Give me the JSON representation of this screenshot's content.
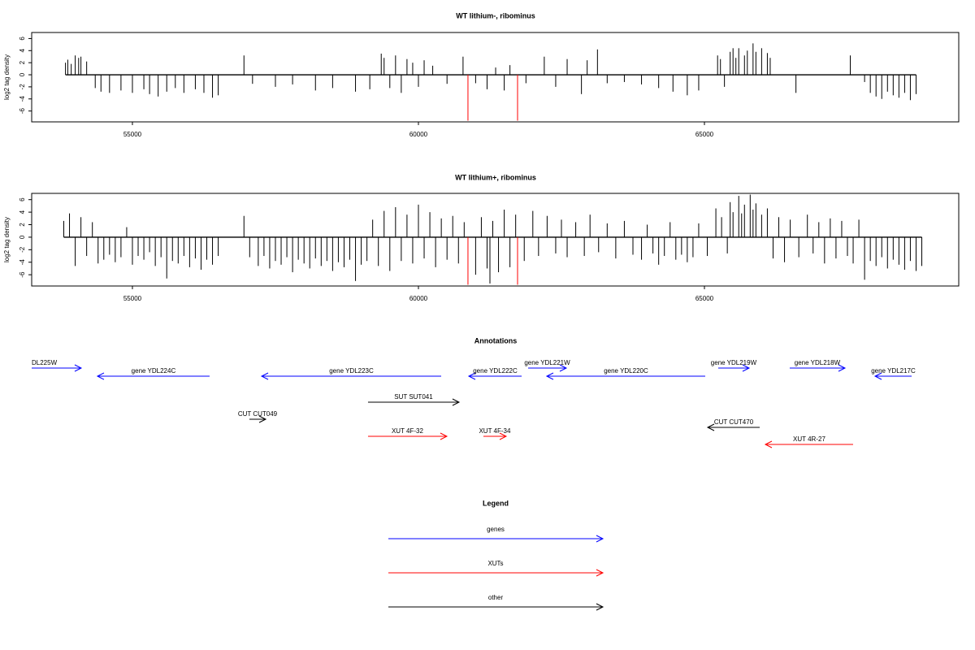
{
  "chart_data": [
    {
      "type": "bar",
      "title": "WT lithium-, ribominus",
      "y_label": "log2 tag density",
      "xlim": [
        53239,
        69446
      ],
      "ylim": [
        -7.8,
        7
      ],
      "xticks": [
        55000,
        60000,
        65000
      ],
      "yticks": [
        -6,
        -4,
        -2,
        0,
        2,
        4,
        6
      ],
      "series": [
        {
          "color": "#000000",
          "x": [
            53830,
            53870,
            53930,
            54000,
            54060,
            54100,
            54200,
            54350,
            54450,
            54600,
            54800,
            55000,
            55200,
            55300,
            55450,
            55600,
            55750,
            55900,
            56100,
            56250,
            56400,
            56500,
            56950,
            57100,
            57500,
            57800,
            58200,
            58500,
            58900,
            59150,
            59350,
            59400,
            59500,
            59600,
            59700,
            59800,
            59900,
            60000,
            60100,
            60250,
            60500,
            60780,
            61000,
            61200,
            61350,
            61500,
            61600,
            61880,
            62200,
            62400,
            62600,
            62850,
            62950,
            63130,
            63300,
            63600,
            63900,
            64200,
            64450,
            64700,
            64900,
            65230,
            65280,
            65350,
            65450,
            65500,
            65550,
            65600,
            65700,
            65750,
            65850,
            65900,
            66000,
            66100,
            66150,
            66600,
            67550,
            67800,
            67900,
            68000,
            68100,
            68200,
            68300,
            68400,
            68500,
            68600,
            68700
          ],
          "values": [
            2,
            2.5,
            1.8,
            3.2,
            2.8,
            3,
            2.2,
            -2.2,
            -2.8,
            -3,
            -2.6,
            -3,
            -2.4,
            -3.2,
            -3.6,
            -2.8,
            -2.2,
            -3,
            -2.4,
            -3,
            -3.8,
            -3.4,
            3.2,
            -1.5,
            -2,
            -1.6,
            -2.6,
            -2.2,
            -2.8,
            -2.4,
            3.5,
            2.8,
            -2.2,
            3.2,
            -3,
            2.6,
            2,
            -2,
            2.4,
            1.5,
            -1.5,
            3,
            -1.4,
            -2.4,
            1.2,
            -2.6,
            1.6,
            -1.4,
            3,
            -2,
            2.6,
            -3.2,
            2.4,
            4.2,
            -1.4,
            -1.2,
            -1.6,
            -2.2,
            -2.8,
            -3.4,
            -2.6,
            3.2,
            2.6,
            -2,
            3.8,
            4.4,
            2.8,
            4.4,
            3.2,
            4,
            5.2,
            3.8,
            4.4,
            3.6,
            2.8,
            -3,
            3.2,
            -1.2,
            -3,
            -3.6,
            -4,
            -2.8,
            -3.4,
            -3.8,
            -3,
            -4.2,
            -3.2
          ]
        },
        {
          "color": "#ff0000",
          "x": [
            60866,
            61733
          ],
          "values": [
            -7.6,
            -7.6
          ]
        }
      ]
    },
    {
      "type": "bar",
      "title": "WT lithium+, ribominus",
      "y_label": "log2 tag density",
      "xlim": [
        53239,
        69446
      ],
      "ylim": [
        -7.8,
        7
      ],
      "xticks": [
        55000,
        60000,
        65000
      ],
      "yticks": [
        -6,
        -4,
        -2,
        0,
        2,
        4,
        6
      ],
      "series": [
        {
          "color": "#000000",
          "x": [
            53800,
            53900,
            54000,
            54100,
            54200,
            54300,
            54400,
            54500,
            54600,
            54700,
            54800,
            54900,
            55000,
            55100,
            55200,
            55300,
            55400,
            55500,
            55600,
            55700,
            55800,
            55900,
            56000,
            56100,
            56200,
            56300,
            56400,
            56500,
            56950,
            57050,
            57200,
            57300,
            57400,
            57500,
            57600,
            57700,
            57800,
            57900,
            58000,
            58100,
            58200,
            58300,
            58400,
            58500,
            58600,
            58700,
            58800,
            58900,
            59000,
            59100,
            59200,
            59300,
            59400,
            59500,
            59600,
            59700,
            59800,
            59900,
            60000,
            60100,
            60200,
            60300,
            60400,
            60500,
            60600,
            60700,
            60800,
            61000,
            61100,
            61200,
            61250,
            61300,
            61400,
            61500,
            61600,
            61700,
            61850,
            62000,
            62100,
            62250,
            62400,
            62500,
            62600,
            62750,
            62900,
            63000,
            63150,
            63300,
            63450,
            63600,
            63750,
            63900,
            64000,
            64100,
            64200,
            64300,
            64400,
            64500,
            64600,
            64700,
            64800,
            64900,
            65050,
            65200,
            65300,
            65400,
            65450,
            65500,
            65600,
            65650,
            65700,
            65800,
            65850,
            65900,
            66000,
            66100,
            66200,
            66300,
            66400,
            66500,
            66650,
            66800,
            66900,
            67000,
            67100,
            67200,
            67300,
            67400,
            67500,
            67600,
            67700,
            67800,
            67900,
            68000,
            68100,
            68200,
            68300,
            68400,
            68500,
            68600,
            68700,
            68800
          ],
          "values": [
            2.6,
            3.8,
            -4.6,
            3.2,
            -3,
            2.4,
            -4.2,
            -3.6,
            -2.8,
            -4,
            -3.2,
            1.6,
            -4.4,
            -3,
            -3.6,
            -2.4,
            -4.6,
            -3.2,
            -6.6,
            -3.8,
            -4.2,
            -3,
            -4.8,
            -3.4,
            -5.2,
            -3.6,
            -4.4,
            -3,
            3.4,
            -3.2,
            -4.6,
            -3,
            -5,
            -3.8,
            -4.4,
            -3.2,
            -5.6,
            -3.6,
            -4.2,
            -5,
            -3.4,
            -4.6,
            -3.8,
            -5.4,
            -4,
            -4.8,
            -3.6,
            -7,
            -4.4,
            -3.8,
            2.8,
            -4.6,
            4.2,
            -5.4,
            4.8,
            -3.8,
            3.6,
            -4.2,
            5.2,
            -3.4,
            4,
            -4.8,
            3,
            -3.6,
            3.4,
            -4.2,
            2.4,
            -6,
            3.2,
            -5,
            -7.4,
            2.6,
            -5.6,
            4.4,
            -4.8,
            3.6,
            -3.8,
            4.2,
            -3,
            3.4,
            -2.6,
            2.8,
            -3.2,
            2.4,
            -3,
            3.6,
            -2.4,
            2.2,
            -3.4,
            2.6,
            -2.8,
            -3.6,
            2,
            -2.6,
            -4.4,
            -3,
            2.4,
            -3.6,
            -2.8,
            -4,
            -3.2,
            2.2,
            -3,
            4.6,
            3.2,
            -2.6,
            5.6,
            4,
            6.6,
            3.8,
            5.2,
            6.8,
            4.4,
            5.4,
            3.6,
            4.6,
            -3.4,
            3.2,
            -4,
            2.8,
            -3.2,
            3.6,
            -2.6,
            2.4,
            -4.2,
            3,
            -3.4,
            2.6,
            -3,
            -4.2,
            2.8,
            -6.8,
            -3.8,
            -4.6,
            -3.2,
            -5,
            -3.6,
            -4.4,
            -5.2,
            -3.8,
            -5.4,
            -4.6
          ]
        },
        {
          "color": "#ff0000",
          "x": [
            60866,
            61733
          ],
          "values": [
            -7.6,
            -7.6
          ]
        }
      ]
    }
  ],
  "annotations": {
    "title": "Annotations",
    "features": [
      {
        "label": "DL225W",
        "start": 53239,
        "end": 54105,
        "color": "#0000ff"
      },
      {
        "label": "gene YDL224C",
        "start": 56349,
        "end": 54389,
        "color": "#0000ff"
      },
      {
        "label": "gene YDL223C",
        "start": 60398,
        "end": 57259,
        "color": "#0000ff"
      },
      {
        "label": "gene YDL222C",
        "start": 61804,
        "end": 60881,
        "color": "#0000ff"
      },
      {
        "label": "gene YDL221W",
        "start": 61918,
        "end": 62585,
        "color": "#0000ff"
      },
      {
        "label": "gene YDL220C",
        "start": 65014,
        "end": 62244,
        "color": "#0000ff"
      },
      {
        "label": "gene YDL219W",
        "start": 65241,
        "end": 65781,
        "color": "#0000ff"
      },
      {
        "label": "gene YDL218W",
        "start": 66491,
        "end": 67457,
        "color": "#0000ff"
      },
      {
        "label": "gene YDL217C",
        "start": 68622,
        "end": 67983,
        "color": "#0000ff"
      },
      {
        "label": "SUT SUT041",
        "start": 59119,
        "end": 60710,
        "color": "#000000"
      },
      {
        "label": "CUT CUT049",
        "start": 57045,
        "end": 57330,
        "color": "#000000"
      },
      {
        "label": "CUT CUT470",
        "start": 65966,
        "end": 65057,
        "color": "#000000"
      },
      {
        "label": "XUT 4F-32",
        "start": 59119,
        "end": 60497,
        "color": "#ff0000"
      },
      {
        "label": "XUT 4F-34",
        "start": 61136,
        "end": 61534,
        "color": "#ff0000"
      },
      {
        "label": "XUT 4R-27",
        "start": 67599,
        "end": 66065,
        "color": "#ff0000"
      }
    ]
  },
  "legend": {
    "title": "Legend",
    "items": [
      {
        "label": "genes",
        "color": "#0000ff"
      },
      {
        "label": "XUTs",
        "color": "#ff0000"
      },
      {
        "label": "other",
        "color": "#000000"
      }
    ]
  }
}
